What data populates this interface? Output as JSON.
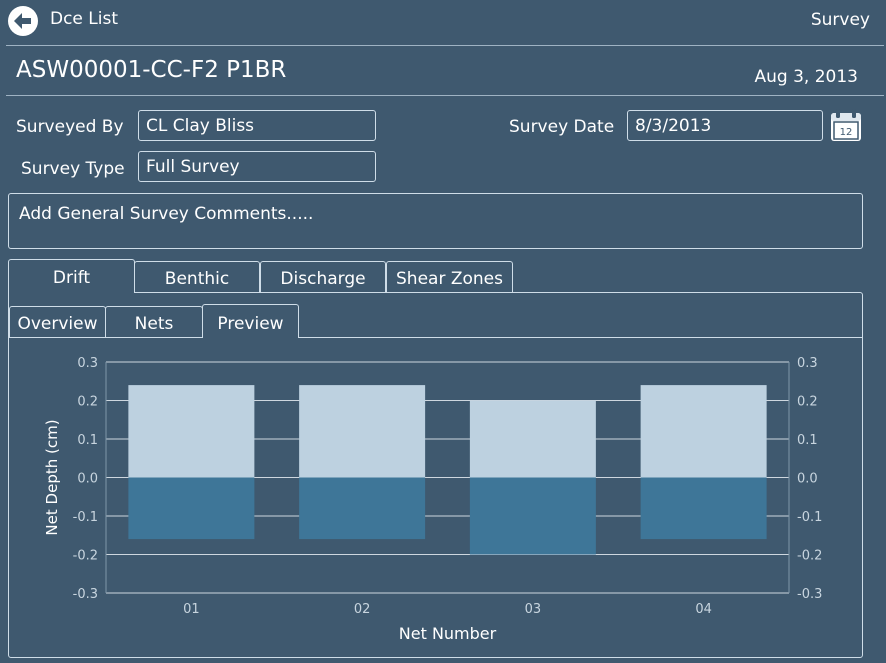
{
  "header": {
    "back_label": "Dce List",
    "title": "Survey"
  },
  "record": {
    "id": "ASW00001-CC-F2 P1BR",
    "date": "Aug 3, 2013"
  },
  "form": {
    "surveyed_by_label": "Surveyed By",
    "surveyed_by_value": "CL Clay Bliss",
    "survey_date_label": "Survey Date",
    "survey_date_value": "8/3/2013",
    "calendar_day": "12",
    "survey_type_label": "Survey Type",
    "survey_type_value": "Full Survey",
    "comments_placeholder": "Add General Survey Comments....."
  },
  "tabs": [
    {
      "label": "Drift",
      "active": true
    },
    {
      "label": "Benthic",
      "active": false
    },
    {
      "label": "Discharge",
      "active": false
    },
    {
      "label": "Shear Zones",
      "active": false
    }
  ],
  "subtabs": [
    {
      "label": "Overview",
      "active": false
    },
    {
      "label": "Nets",
      "active": false
    },
    {
      "label": "Preview",
      "active": true
    }
  ],
  "colors": {
    "positive": "#bdd1e0",
    "negative": "#3e7698",
    "background": "#3f596f",
    "grid": "#e8eef3"
  },
  "chart_data": {
    "type": "bar",
    "categories": [
      "01",
      "02",
      "03",
      "04"
    ],
    "series": [
      {
        "values": [
          0.24,
          0.24,
          0.2,
          0.24
        ]
      },
      {
        "values": [
          -0.16,
          -0.16,
          -0.2,
          -0.16
        ]
      }
    ],
    "xlabel": "Net Number",
    "ylabel": "Net Depth (cm)",
    "ylim": [
      -0.3,
      0.3
    ],
    "yticks": [
      "0.3",
      "0.2",
      "0.1",
      "0.0",
      "-0.1",
      "-0.2",
      "-0.3"
    ],
    "grid": true,
    "secondary_axis": true
  }
}
